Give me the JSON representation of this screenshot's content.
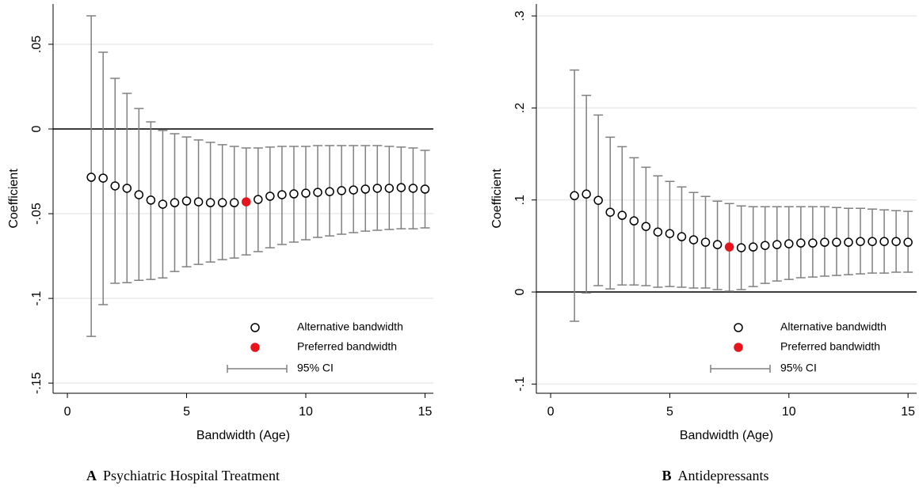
{
  "chart_data": [
    {
      "type": "scatter",
      "panel": "A",
      "caption": "Psychiatric Hospital Treatment",
      "xlabel": "Bandwidth (Age)",
      "ylabel": "Coefficient",
      "xlim": [
        -0.6,
        15.35
      ],
      "xticks": [
        0,
        5,
        10,
        15
      ],
      "ylim": [
        -0.156,
        0.0738
      ],
      "yticks": [
        {
          "value": 0.05,
          "label": ".05"
        },
        0,
        {
          "value": -0.05,
          "label": "-.05"
        },
        {
          "value": -0.1,
          "label": "-.1"
        },
        {
          "value": -0.15,
          "label": "-.15"
        }
      ],
      "grid": true,
      "reference_line": 0,
      "legend": "lower right",
      "series": [
        {
          "name": "Alternative bandwidth",
          "color": "#000000",
          "marker": "hollow",
          "x": [
            1,
            1.5,
            2,
            2.5,
            3,
            3.5,
            4,
            4.5,
            5,
            5.5,
            6,
            6.5,
            7,
            8,
            8.5,
            9,
            9.5,
            10,
            10.5,
            11,
            11.5,
            12,
            12.5,
            13,
            13.5,
            14,
            14.5,
            15
          ],
          "values": [
            -0.0285,
            -0.029,
            -0.0336,
            -0.035,
            -0.0388,
            -0.042,
            -0.0444,
            -0.0435,
            -0.0425,
            -0.043,
            -0.0435,
            -0.0435,
            -0.0435,
            -0.0416,
            -0.0397,
            -0.0388,
            -0.0383,
            -0.0379,
            -0.0374,
            -0.037,
            -0.0364,
            -0.036,
            -0.0355,
            -0.035,
            -0.035,
            -0.0346,
            -0.035,
            -0.0355
          ]
        },
        {
          "name": "Preferred bandwidth",
          "color": "#e8141c",
          "marker": "filled",
          "x": [
            7.5
          ],
          "values": [
            -0.043
          ]
        }
      ],
      "ci": {
        "name": "95% CI",
        "color": "#808080",
        "x": [
          1,
          1.5,
          2,
          2.5,
          3,
          3.5,
          4,
          4.5,
          5,
          5.5,
          6,
          6.5,
          7,
          7.5,
          8,
          8.5,
          9,
          9.5,
          10,
          10.5,
          11,
          11.5,
          12,
          12.5,
          13,
          13.5,
          14,
          14.5,
          15
        ],
        "low": [
          -0.1224,
          -0.1037,
          -0.0911,
          -0.0907,
          -0.0893,
          -0.0888,
          -0.0879,
          -0.0841,
          -0.0813,
          -0.0799,
          -0.0785,
          -0.0771,
          -0.0762,
          -0.0743,
          -0.0724,
          -0.0701,
          -0.0682,
          -0.0668,
          -0.0654,
          -0.064,
          -0.0631,
          -0.0621,
          -0.0612,
          -0.0603,
          -0.0598,
          -0.0593,
          -0.0589,
          -0.0589,
          -0.0584
        ],
        "high": [
          0.0668,
          0.0453,
          0.0299,
          0.021,
          0.0121,
          0.0042,
          -0.0009,
          -0.0028,
          -0.0047,
          -0.0065,
          -0.0079,
          -0.0093,
          -0.0103,
          -0.0112,
          -0.0112,
          -0.0107,
          -0.0103,
          -0.0103,
          -0.0103,
          -0.0098,
          -0.0098,
          -0.0098,
          -0.0098,
          -0.0098,
          -0.0098,
          -0.0103,
          -0.0107,
          -0.0112,
          -0.0126
        ]
      }
    },
    {
      "type": "scatter",
      "panel": "B",
      "caption": "Antidepressants",
      "xlabel": "Bandwidth (Age)",
      "ylabel": "Coefficient",
      "xlim": [
        -0.6,
        15.36
      ],
      "xticks": [
        0,
        5,
        10,
        15
      ],
      "ylim": [
        -0.11,
        0.313
      ],
      "yticks": [
        {
          "value": 0.3,
          "label": ".3"
        },
        {
          "value": 0.2,
          "label": ".2"
        },
        {
          "value": 0.1,
          "label": ".1"
        },
        0,
        {
          "value": -0.1,
          "label": "-.1"
        }
      ],
      "grid": true,
      "reference_line": 0,
      "legend": "lower right",
      "series": [
        {
          "name": "Alternative bandwidth",
          "color": "#000000",
          "marker": "hollow",
          "x": [
            1,
            1.5,
            2,
            2.5,
            3,
            3.5,
            4,
            4.5,
            5,
            5.5,
            6,
            6.5,
            7,
            8,
            8.5,
            9,
            9.5,
            10,
            10.5,
            11,
            11.5,
            12,
            12.5,
            13,
            13.5,
            14,
            14.5,
            15
          ],
          "values": [
            0.1047,
            0.1064,
            0.0996,
            0.0867,
            0.0833,
            0.0773,
            0.0712,
            0.0652,
            0.0635,
            0.0601,
            0.0567,
            0.0541,
            0.0515,
            0.0481,
            0.0489,
            0.0506,
            0.0515,
            0.0524,
            0.0532,
            0.0532,
            0.0541,
            0.0541,
            0.0541,
            0.0549,
            0.0549,
            0.0549,
            0.0549,
            0.0541
          ]
        },
        {
          "name": "Preferred bandwidth",
          "color": "#e8141c",
          "marker": "filled",
          "x": [
            7.5
          ],
          "values": [
            0.0489
          ]
        }
      ],
      "ci": {
        "name": "95% CI",
        "color": "#808080",
        "x": [
          1,
          1.5,
          2,
          2.5,
          3,
          3.5,
          4,
          4.5,
          5,
          5.5,
          6,
          6.5,
          7,
          7.5,
          8,
          8.5,
          9,
          9.5,
          10,
          10.5,
          11,
          11.5,
          12,
          12.5,
          13,
          13.5,
          14,
          14.5,
          15
        ],
        "low": [
          -0.0318,
          -0.0009,
          0.0069,
          0.0034,
          0.0077,
          0.0077,
          0.0069,
          0.0052,
          0.006,
          0.0052,
          0.0043,
          0.0043,
          0.0026,
          0.0009,
          0.0026,
          0.006,
          0.0094,
          0.012,
          0.0137,
          0.0155,
          0.0163,
          0.0172,
          0.018,
          0.0189,
          0.0197,
          0.0206,
          0.0206,
          0.0215,
          0.0215
        ],
        "high": [
          0.2412,
          0.2137,
          0.1923,
          0.1682,
          0.1579,
          0.1459,
          0.1356,
          0.1262,
          0.1202,
          0.1142,
          0.1082,
          0.1039,
          0.0987,
          0.0961,
          0.0936,
          0.0927,
          0.0927,
          0.0927,
          0.0927,
          0.0927,
          0.0927,
          0.0927,
          0.0918,
          0.091,
          0.091,
          0.0901,
          0.0893,
          0.0884,
          0.0876
        ]
      }
    }
  ]
}
